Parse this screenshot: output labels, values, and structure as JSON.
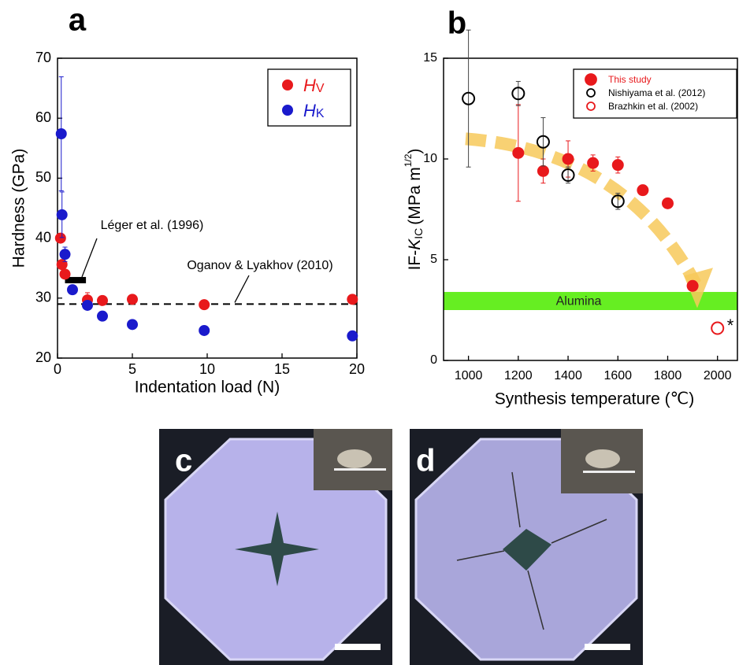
{
  "panel_labels": [
    "a",
    "b",
    "c",
    "d"
  ],
  "chart_data": [
    {
      "type": "scatter",
      "x_label": "Indentation load (N)",
      "y_label": "Hardness (GPa)",
      "xlim": [
        0,
        20
      ],
      "ylim": [
        20,
        70
      ],
      "xticks": [
        0,
        5,
        10,
        15,
        20
      ],
      "yticks": [
        20,
        30,
        40,
        50,
        60,
        70
      ],
      "series": [
        {
          "name": {
            "symbol": "H",
            "subscript": "V"
          },
          "color": "#e8191c",
          "marker": "filled",
          "x": [
            0.2,
            0.3,
            0.5,
            2,
            3,
            5,
            9.8,
            19.7
          ],
          "values": [
            40,
            35.6,
            34.0,
            29.7,
            29.6,
            29.8,
            28.9,
            29.8
          ],
          "errors": [
            null,
            null,
            null,
            1.2,
            null,
            null,
            null,
            null
          ]
        },
        {
          "name": {
            "symbol": "H",
            "subscript": "K"
          },
          "color": "#1a1acc",
          "marker": "filled",
          "x": [
            0.25,
            0.3,
            0.5,
            1,
            2,
            3,
            5,
            9.8,
            19.7
          ],
          "values": [
            57.4,
            43.9,
            37.3,
            31.4,
            28.8,
            27.0,
            25.6,
            24.6,
            23.7
          ],
          "errors": [
            9.5,
            3.8,
            1.2,
            null,
            null,
            null,
            null,
            null,
            null
          ]
        }
      ],
      "reference_line": {
        "value": 29,
        "label": "Oganov & Lyakhov (2010)"
      },
      "reference_range": {
        "x": [
          0.5,
          1.9
        ],
        "y": 33,
        "label": "Léger et al. (1996)"
      }
    },
    {
      "type": "scatter",
      "x_label": "Synthesis temperature (℃)",
      "y_label": {
        "prefix": "IF-",
        "symbol": "K",
        "subscript": "IC",
        "unit": "(MPa m",
        "superscript": "1/2",
        "close": ")"
      },
      "xlim": [
        900,
        2080
      ],
      "ylim": [
        0,
        15
      ],
      "xticks": [
        1000,
        1200,
        1400,
        1600,
        1800,
        2000
      ],
      "yticks": [
        0,
        5,
        10,
        15
      ],
      "series": [
        {
          "name": "This study",
          "color": "#e8191c",
          "marker": "filled",
          "x": [
            1200,
            1300,
            1400,
            1500,
            1600,
            1700,
            1800,
            1900
          ],
          "values": [
            10.3,
            9.4,
            10.0,
            9.8,
            9.7,
            8.45,
            7.8,
            3.7
          ],
          "errors": [
            2.4,
            0.6,
            0.9,
            0.4,
            0.4,
            null,
            null,
            null
          ]
        },
        {
          "name": "Nishiyama et al. (2012)",
          "color": "#000000",
          "marker": "open",
          "x": [
            1000,
            1200,
            1300,
            1400,
            1600
          ],
          "values": [
            13.0,
            13.25,
            10.85,
            9.2,
            7.9
          ],
          "errors": [
            3.4,
            0.6,
            1.2,
            0.4,
            0.4
          ]
        },
        {
          "name": "Brazhkin et al. (2002)",
          "color": "#e8191c",
          "marker": "open",
          "x": [
            2000
          ],
          "values": [
            1.6
          ],
          "errors": [
            null
          ]
        }
      ],
      "band": {
        "range": [
          2.5,
          3.4
        ],
        "label": "Alumina",
        "color": "#66ee22"
      },
      "marker_note": "*"
    }
  ]
}
